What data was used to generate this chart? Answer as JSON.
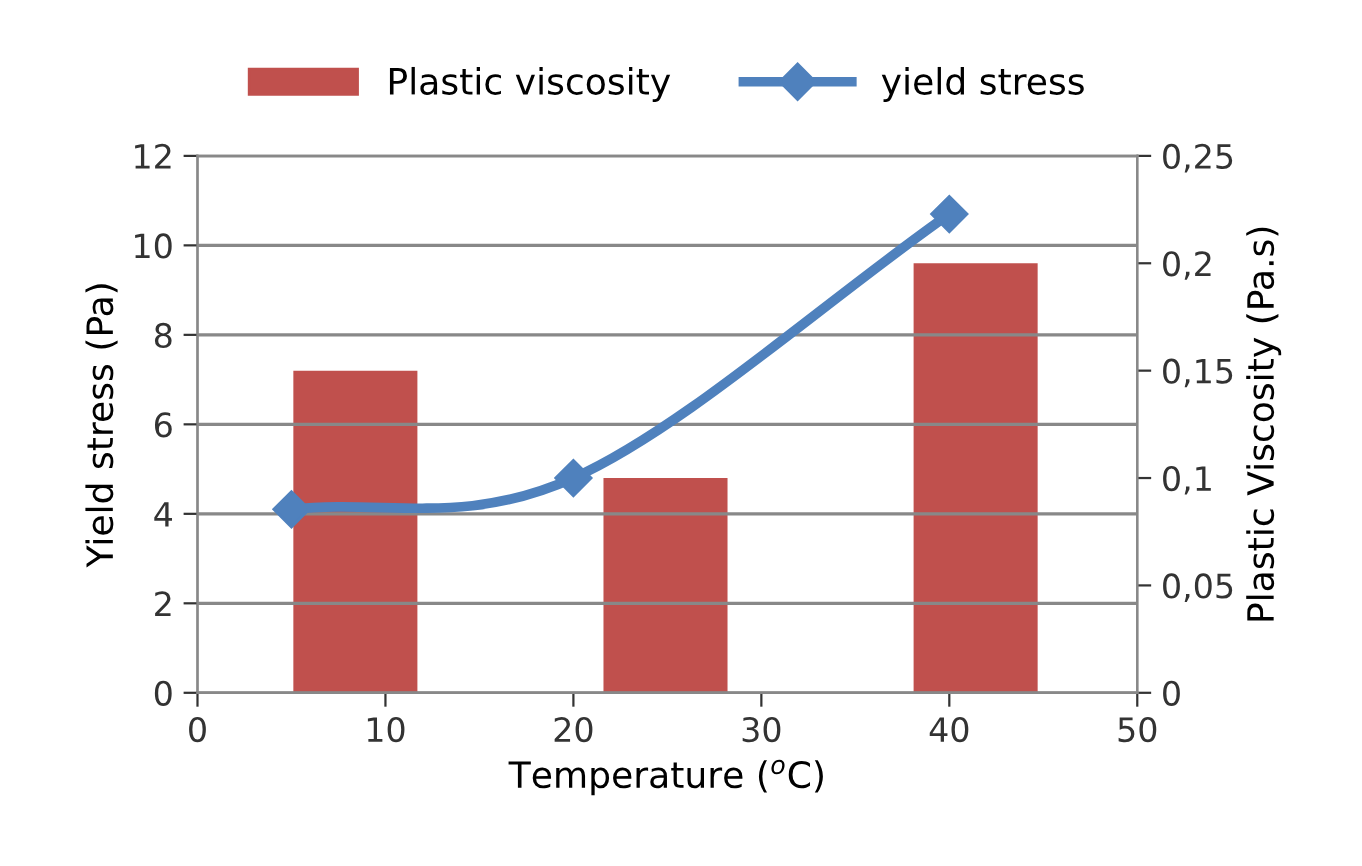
{
  "chart_data": {
    "type": "bar",
    "xlabel": "Temperature ($^{o}$C)",
    "ylabel": "Yield stress (Pa)",
    "y2label": "Plastic Viscosity (Pa.s)",
    "series": [
      {
        "name": "Plastic viscosity",
        "axis": "y2",
        "color": "#c0504d",
        "x": [
          8.4,
          24.9,
          41.4
        ],
        "values": [
          0.15,
          0.1,
          0.2
        ]
      },
      {
        "name": "yield stress",
        "type": "line",
        "color": "#4f81bd",
        "marker": "diamond",
        "x": [
          5,
          20,
          40
        ],
        "values": [
          4.1,
          4.8,
          10.7
        ]
      }
    ],
    "xlim": [
      0,
      50
    ],
    "xticks": [
      0,
      10,
      20,
      30,
      40,
      50
    ],
    "ylim": [
      0,
      12
    ],
    "yticks": [
      0,
      2,
      4,
      6,
      8,
      10,
      12
    ],
    "y2lim": [
      0,
      0.25
    ],
    "y2ticks": [
      {
        "value": 0,
        "label": "0"
      },
      {
        "value": 0.05,
        "label": "0,05"
      },
      {
        "value": 0.1,
        "label": "0,1"
      },
      {
        "value": 0.15,
        "label": "0,15"
      },
      {
        "value": 0.2,
        "label": "0,2"
      },
      {
        "value": 0.25,
        "label": "0,25"
      }
    ],
    "grid": "y",
    "legend": "top"
  }
}
